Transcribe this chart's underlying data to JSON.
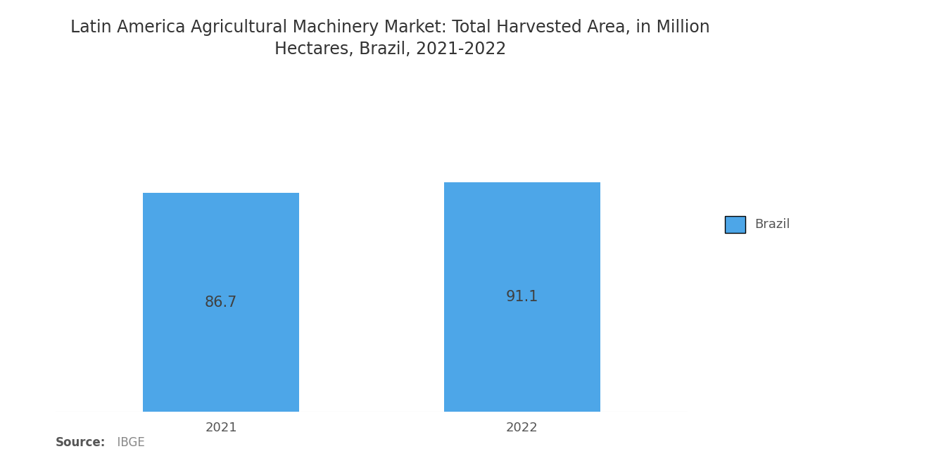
{
  "title": "Latin America Agricultural Machinery Market: Total Harvested Area, in Million\nHectares, Brazil, 2021-2022",
  "categories": [
    "2021",
    "2022"
  ],
  "values": [
    86.7,
    91.1
  ],
  "bar_color": "#4DA6E8",
  "label_color": "#404040",
  "background_color": "#ffffff",
  "legend_label": "Brazil",
  "source_bold": "Source:",
  "source_light": "  IBGE",
  "title_fontsize": 17,
  "label_fontsize": 15,
  "tick_fontsize": 13,
  "source_fontsize": 12,
  "legend_fontsize": 13,
  "ylim_max": 115,
  "bar_width": 0.52
}
